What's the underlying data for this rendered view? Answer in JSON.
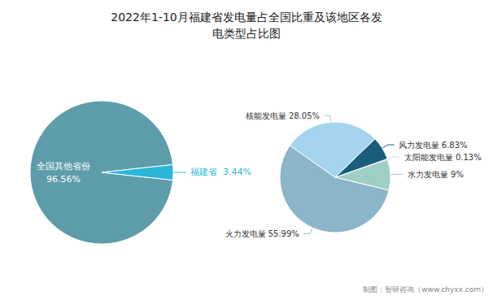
{
  "chart_data": [
    {
      "type": "pie",
      "title": "2022年1-10月福建省发电量占全国比重及该地区各发\n电类型占比图",
      "categories": [
        "全国其他省份",
        "福建省"
      ],
      "values": [
        96.56,
        3.44
      ],
      "value_labels": [
        "全国其他省份\n96.56%",
        "福建省  3.44%"
      ],
      "colors": [
        "#5d9daa",
        "#29b6d8"
      ],
      "data_labels": true,
      "annotations": [
        "制图：智研咨询（www.chyxx.com）"
      ]
    },
    {
      "type": "pie",
      "categories": [
        "火力发电量",
        "水力发电量",
        "太阳能发电量",
        "风力发电量",
        "核能发电量"
      ],
      "values": [
        55.99,
        9.0,
        0.13,
        6.83,
        28.05
      ],
      "value_labels": [
        "火力发电量 55.99%",
        "水力发电量 9%",
        "太阳能发电量 0.13%",
        "风力发电量 6.83%",
        "核能发电量 28.05%"
      ],
      "colors": [
        "#8bb5c8",
        "#9ecfc5",
        "#c5e5dd",
        "#1a5c7e",
        "#a5d5ee"
      ],
      "data_labels": true
    }
  ]
}
